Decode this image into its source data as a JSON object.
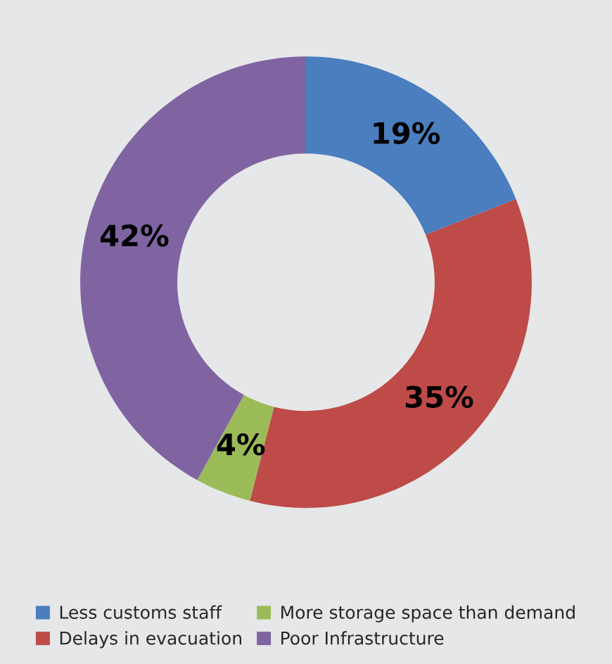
{
  "chart_data": {
    "type": "donut",
    "categories": [
      "Less customs staff",
      "Delays in evacuation",
      "More storage space than demand",
      "Poor Infrastructure"
    ],
    "values": [
      19,
      35,
      4,
      42
    ],
    "colors": [
      "#4a7ebf",
      "#be4b48",
      "#9bbb59",
      "#8064a2"
    ],
    "value_labels": [
      "19%",
      "35%",
      "4%",
      "42%"
    ],
    "legend": "bottom"
  }
}
